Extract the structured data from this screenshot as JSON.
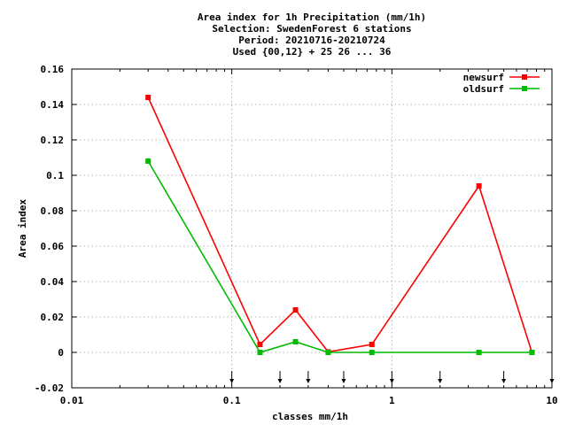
{
  "chart_data": {
    "type": "line",
    "title_lines": [
      "Area index  for 1h Precipitation (mm/1h)",
      "Selection: SwedenForest      6 stations",
      "Period: 20210716-20210724",
      "Used {00,12} + 25 26 ... 36"
    ],
    "xlabel": "classes mm/1h",
    "ylabel": "Area index",
    "x_scale": "log",
    "xlim": [
      0.01,
      10
    ],
    "ylim": [
      -0.02,
      0.16
    ],
    "x_ticks": [
      0.01,
      0.1,
      1,
      10
    ],
    "x_tick_labels": [
      "0.01",
      "0.1",
      "1",
      "10"
    ],
    "y_ticks": [
      -0.02,
      0,
      0.02,
      0.04,
      0.06,
      0.08,
      0.1,
      0.12,
      0.14,
      0.16
    ],
    "y_tick_labels": [
      "-0.02",
      "0",
      "0.02",
      "0.04",
      "0.06",
      "0.08",
      "0.1",
      "0.12",
      "0.14",
      "0.16"
    ],
    "grid": true,
    "legend_position": "top-right",
    "class_limit_arrows": [
      0.1,
      0.2,
      0.3,
      0.5,
      1,
      2,
      5,
      10
    ],
    "series": [
      {
        "name": "newsurf",
        "color": "#ff0000",
        "x": [
          0.03,
          0.15,
          0.25,
          0.4,
          0.75,
          3.5,
          7.5
        ],
        "y": [
          0.144,
          0.0045,
          0.024,
          0.0003,
          0.0045,
          0.094,
          0.0
        ]
      },
      {
        "name": "oldsurf",
        "color": "#00bb00",
        "x": [
          0.03,
          0.15,
          0.25,
          0.4,
          0.75,
          3.5,
          7.5
        ],
        "y": [
          0.108,
          0.0,
          0.006,
          0.0,
          0.0,
          0.0,
          0.0
        ]
      }
    ]
  }
}
